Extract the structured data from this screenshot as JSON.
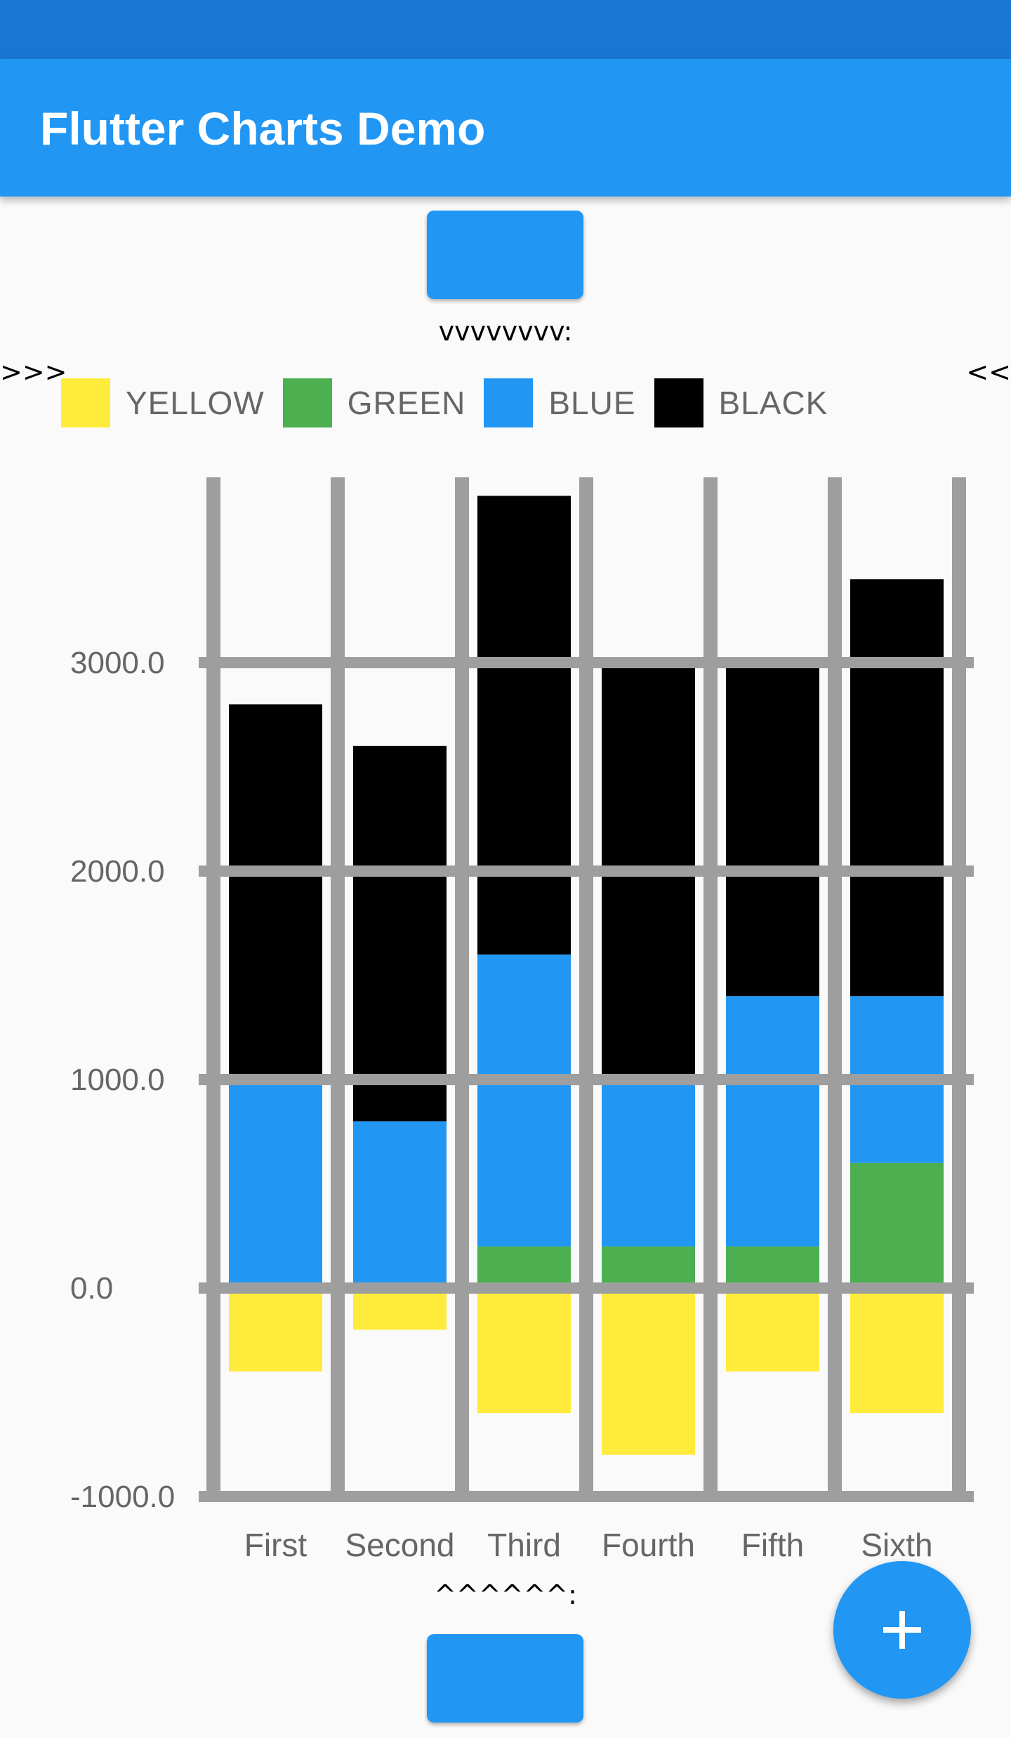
{
  "app_bar": {
    "title": "Flutter Charts Demo"
  },
  "top_caption": "vvvvvvvv:",
  "bottom_caption": "^^^^^^:",
  "left_marker": ">>>",
  "right_marker": "<<",
  "fab": {
    "icon": "plus-icon"
  },
  "colors": {
    "status_bar": "#1976d2",
    "app_bar": "#2196f3",
    "grid": "#9e9e9e",
    "axis_label": "#666666"
  },
  "chart_data": {
    "type": "bar",
    "stacked": true,
    "categories": [
      "First",
      "Second",
      "Third",
      "Fourth",
      "Fifth",
      "Sixth"
    ],
    "series": [
      {
        "name": "YELLOW",
        "color": "#ffeb3b",
        "values": [
          -400,
          -200,
          -600,
          -800,
          -400,
          -600
        ]
      },
      {
        "name": "GREEN",
        "color": "#4caf50",
        "values": [
          0,
          0,
          200,
          200,
          200,
          600
        ]
      },
      {
        "name": "BLUE",
        "color": "#2196f3",
        "values": [
          1000,
          800,
          1400,
          800,
          1200,
          800
        ]
      },
      {
        "name": "BLACK",
        "color": "#000000",
        "values": [
          1800,
          1800,
          2200,
          2000,
          1600,
          2000
        ]
      }
    ],
    "y_ticks": [
      -1000,
      0,
      1000,
      2000,
      3000
    ],
    "y_tick_labels": [
      "-1000.0",
      "0.0",
      "1000.0",
      "2000.0",
      "3000.0"
    ],
    "ylim": [
      -1000,
      3900
    ],
    "grid": true,
    "legend_position": "top",
    "xlabel": "",
    "ylabel": "",
    "title": ""
  }
}
